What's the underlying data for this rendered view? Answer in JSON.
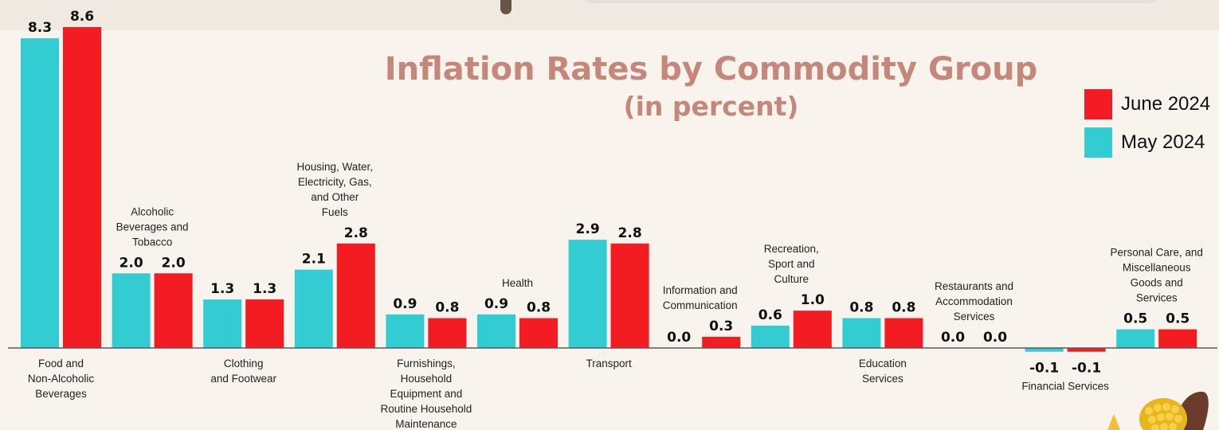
{
  "chart_data": {
    "type": "bar",
    "title": "Inflation Rates by Commodity Group",
    "subtitle": "(in percent)",
    "categories": [
      "Food and Non-Alcoholic Beverages",
      "Alcoholic Beverages and Tobacco",
      "Clothing and Footwear",
      "Housing, Water, Electricity, Gas, and Other Fuels",
      "Furnishings, Household Equipment and Routine Household Maintenance",
      "Health",
      "Transport",
      "Information and Communication",
      "Recreation, Sport and Culture",
      "Education Services",
      "Restaurants and Accommodation Services",
      "Financial Services",
      "Personal Care, and Miscellaneous Goods and Services"
    ],
    "category_label_lines": [
      [
        "Food and",
        "Non-Alcoholic",
        "Beverages"
      ],
      [
        "Alcoholic",
        "Beverages and",
        "Tobacco"
      ],
      [
        "Clothing",
        "and Footwear"
      ],
      [
        "Housing, Water,",
        "Electricity, Gas,",
        "and Other",
        "Fuels"
      ],
      [
        "Furnishings,",
        "Household",
        "Equipment and",
        "Routine Household",
        "Maintenance"
      ],
      [
        "Health"
      ],
      [
        "Transport"
      ],
      [
        "Information and",
        "Communication"
      ],
      [
        "Recreation,",
        "Sport and",
        "Culture"
      ],
      [
        "Education",
        "Services"
      ],
      [
        "Restaurants and",
        "Accommodation",
        "Services"
      ],
      [
        "Financial Services"
      ],
      [
        "Personal Care, and",
        "Miscellaneous",
        "Goods and",
        "Services"
      ]
    ],
    "category_label_position": [
      "below",
      "above",
      "below",
      "above",
      "below",
      "above",
      "below",
      "above",
      "above",
      "below",
      "above",
      "below",
      "above"
    ],
    "series": [
      {
        "name": "May 2024",
        "color": "#33ccd3",
        "values": [
          8.3,
          2.0,
          1.3,
          2.1,
          0.9,
          0.9,
          2.9,
          0.0,
          0.6,
          0.8,
          0.0,
          -0.1,
          0.5
        ],
        "labels": [
          "8.3",
          "2.0",
          "1.3",
          "2.1",
          "0.9",
          "0.9",
          "2.9",
          "0.0",
          "0.6",
          "0.8",
          "0.0",
          "-0.1",
          "0.5"
        ]
      },
      {
        "name": "June 2024",
        "color": "#f21c22",
        "values": [
          8.6,
          2.0,
          1.3,
          2.8,
          0.8,
          0.8,
          2.8,
          0.3,
          1.0,
          0.8,
          0.0,
          -0.1,
          0.5
        ],
        "labels": [
          "8.6",
          "2.0",
          "1.3",
          "2.8",
          "0.8",
          "0.8",
          "2.8",
          "0.3",
          "1.0",
          "0.8",
          "0.0",
          "-0.1",
          "0.5"
        ]
      }
    ],
    "legend": {
      "placement": "right",
      "order": [
        "June 2024",
        "May 2024"
      ]
    },
    "ylim": [
      -0.1,
      8.6
    ],
    "grid": false,
    "xlabel": "",
    "ylabel": ""
  },
  "colors": {
    "title": "#c5877a",
    "axis": "#5a5a5a",
    "background": "#f8f3ec"
  }
}
